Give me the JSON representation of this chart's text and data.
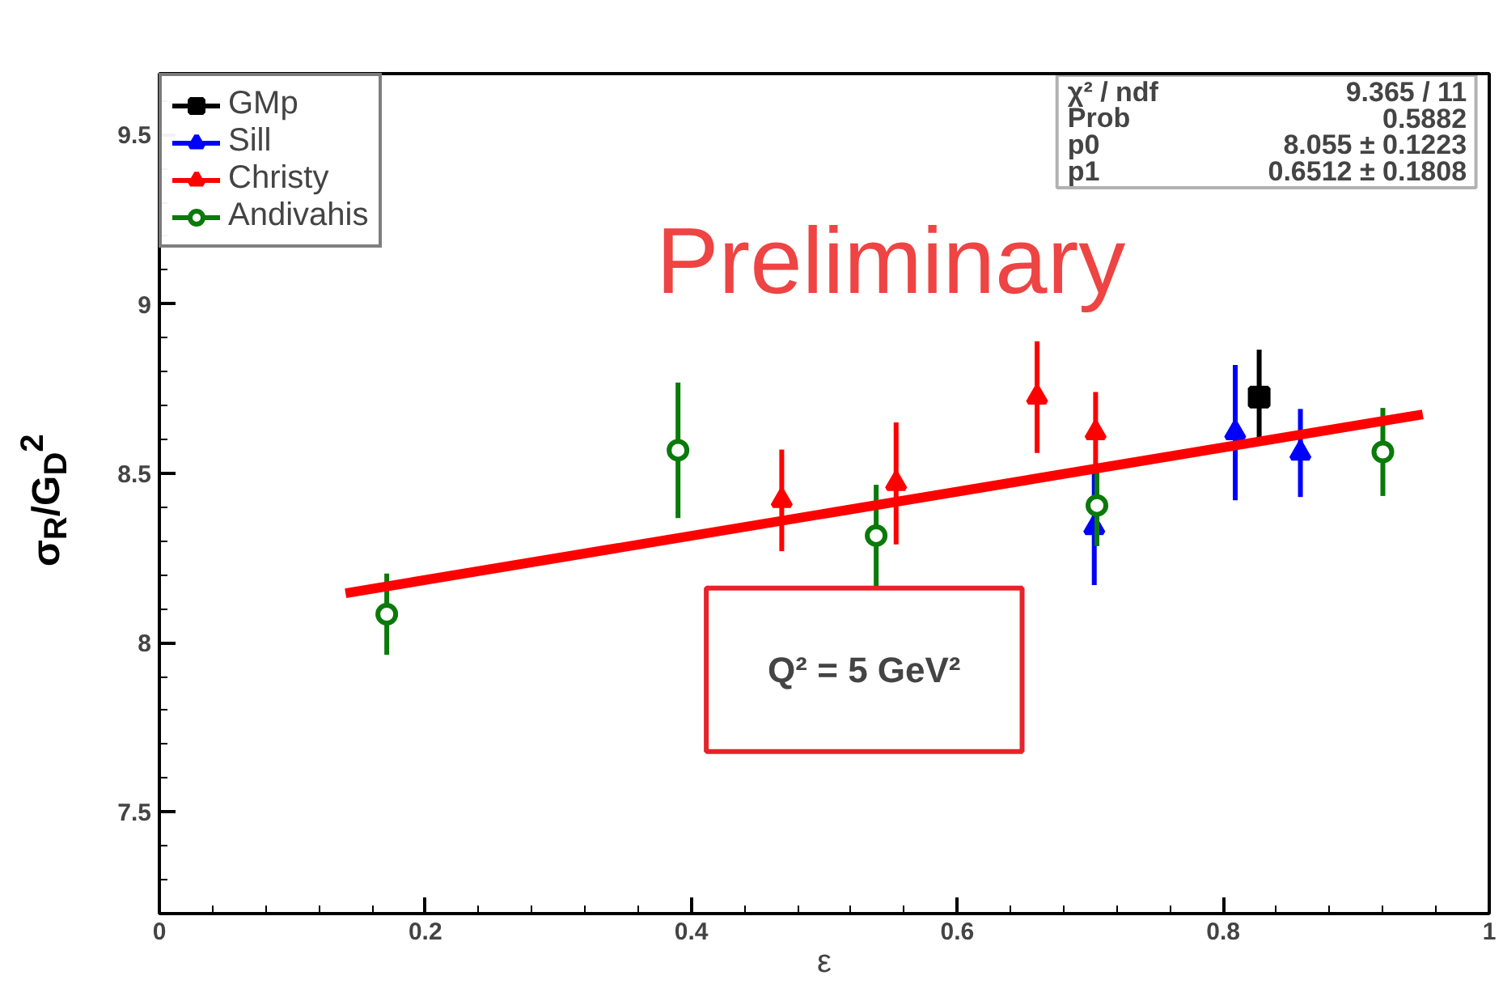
{
  "chart_data": {
    "type": "scatter",
    "xlabel": "ε",
    "ylabel": "σ$_{R}$/G$_{D}$$^{2}$",
    "xlim": [
      0,
      1
    ],
    "ylim": [
      7.2,
      9.68
    ],
    "xticks": [
      0,
      0.2,
      0.4,
      0.6,
      0.8,
      1
    ],
    "yticks": [
      7.5,
      8,
      8.5,
      9,
      9.5
    ],
    "grid": false,
    "legend": "top left",
    "series": [
      {
        "name": "GMp",
        "color": "#000000",
        "marker": "square",
        "x": [
          0.827
        ],
        "values": [
          8.725
        ],
        "errors": [
          0.14
        ]
      },
      {
        "name": "Sill",
        "color": "#0000ff",
        "marker": "triangle",
        "x": [
          0.703,
          0.809,
          0.858
        ],
        "values": [
          8.34,
          8.62,
          8.56
        ],
        "errors": [
          0.17,
          0.2,
          0.13
        ]
      },
      {
        "name": "Christy",
        "color": "#ff0000",
        "marker": "triangle",
        "x": [
          0.468,
          0.554,
          0.66,
          0.704
        ],
        "values": [
          8.42,
          8.47,
          8.725,
          8.62
        ],
        "errors": [
          0.15,
          0.18,
          0.165,
          0.12
        ]
      },
      {
        "name": "Andivahis",
        "color": "#0a7a0a",
        "marker": "circle",
        "x": [
          0.171,
          0.39,
          0.539,
          0.705,
          0.92
        ],
        "values": [
          8.084,
          8.568,
          8.316,
          8.405,
          8.563
        ],
        "errors": [
          0.12,
          0.2,
          0.15,
          0.12,
          0.13
        ]
      },
      {
        "type": "line",
        "color": "#ff0000",
        "x": [
          0.14,
          0.95
        ],
        "values": [
          8.146,
          8.674
        ]
      }
    ],
    "annotations": [
      "Preliminary",
      "Q² = 5 GeV²",
      "χ² / ndf",
      "9.365 / 11",
      "Prob",
      "0.5882",
      "p0",
      "8.055 ± 0.1223",
      "p1",
      "0.6512 ± 0.1808"
    ]
  }
}
